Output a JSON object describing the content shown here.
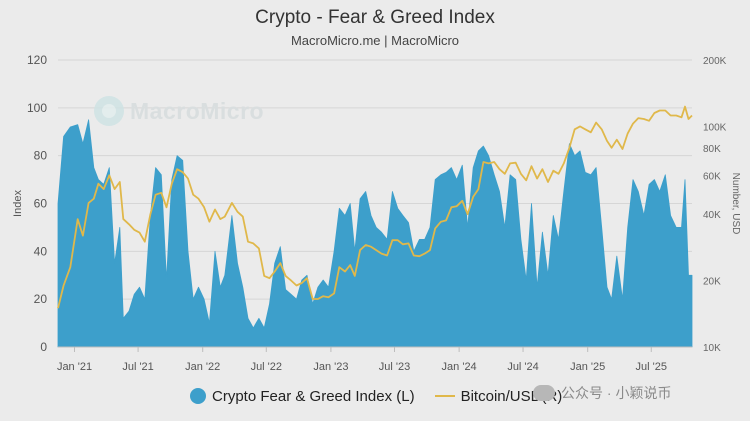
{
  "chart": {
    "title": "Crypto - Fear & Greed Index",
    "subtitle": "MacroMicro.me | MacroMicro",
    "watermark": "MacroMicro",
    "footer_watermark": "公众号 · 小颖说币"
  },
  "chart_data": {
    "type": "area",
    "title": "Crypto - Fear & Greed Index",
    "subtitle": "MacroMicro.me | MacroMicro",
    "grid": true,
    "legend_position": "bottom",
    "x_axis": {
      "type": "date",
      "range": [
        "2020-11-15",
        "2025-10-25"
      ],
      "ticks": [
        {
          "date": "2021-01-01",
          "label": "Jan '21"
        },
        {
          "date": "2021-07-01",
          "label": "Jul '21"
        },
        {
          "date": "2022-01-01",
          "label": "Jan '22"
        },
        {
          "date": "2022-07-01",
          "label": "Jul '22"
        },
        {
          "date": "2023-01-01",
          "label": "Jan '23"
        },
        {
          "date": "2023-07-01",
          "label": "Jul '23"
        },
        {
          "date": "2024-01-01",
          "label": "Jan '24"
        },
        {
          "date": "2024-07-01",
          "label": "Jul '24"
        },
        {
          "date": "2025-01-01",
          "label": "Jan '25"
        },
        {
          "date": "2025-07-01",
          "label": "Jul '25"
        }
      ]
    },
    "y_left": {
      "label": "Index",
      "range": [
        0,
        120
      ],
      "ticks": [
        0,
        20,
        40,
        60,
        80,
        100,
        120
      ]
    },
    "y_right": {
      "label": "Number, USD",
      "scale": "log",
      "range": [
        10000,
        200000
      ],
      "ticks": [
        {
          "value": 10000,
          "label": "10K"
        },
        {
          "value": 20000,
          "label": "20K"
        },
        {
          "value": 40000,
          "label": "40K"
        },
        {
          "value": 60000,
          "label": "60K"
        },
        {
          "value": 80000,
          "label": "80K"
        },
        {
          "value": 100000,
          "label": "100K"
        },
        {
          "value": 200000,
          "label": "200K"
        }
      ]
    },
    "series": [
      {
        "name": "Crypto Fear & Greed Index (L)",
        "axis": "left",
        "type": "area",
        "color": "#3d9fcb",
        "points": [
          [
            "2020-11-15",
            60
          ],
          [
            "2020-12-01",
            88
          ],
          [
            "2020-12-20",
            92
          ],
          [
            "2021-01-10",
            93
          ],
          [
            "2021-01-25",
            85
          ],
          [
            "2021-02-10",
            95
          ],
          [
            "2021-02-25",
            75
          ],
          [
            "2021-03-10",
            70
          ],
          [
            "2021-03-25",
            68
          ],
          [
            "2021-04-10",
            75
          ],
          [
            "2021-04-25",
            35
          ],
          [
            "2021-05-10",
            50
          ],
          [
            "2021-05-20",
            12
          ],
          [
            "2021-06-05",
            15
          ],
          [
            "2021-06-20",
            22
          ],
          [
            "2021-07-05",
            25
          ],
          [
            "2021-07-20",
            20
          ],
          [
            "2021-08-05",
            55
          ],
          [
            "2021-08-20",
            75
          ],
          [
            "2021-09-05",
            72
          ],
          [
            "2021-09-20",
            28
          ],
          [
            "2021-10-05",
            70
          ],
          [
            "2021-10-20",
            80
          ],
          [
            "2021-11-05",
            78
          ],
          [
            "2021-11-20",
            40
          ],
          [
            "2021-12-05",
            20
          ],
          [
            "2021-12-20",
            25
          ],
          [
            "2022-01-05",
            20
          ],
          [
            "2022-01-20",
            10
          ],
          [
            "2022-02-05",
            40
          ],
          [
            "2022-02-20",
            25
          ],
          [
            "2022-03-05",
            30
          ],
          [
            "2022-03-25",
            55
          ],
          [
            "2022-04-10",
            35
          ],
          [
            "2022-04-25",
            25
          ],
          [
            "2022-05-10",
            12
          ],
          [
            "2022-05-25",
            8
          ],
          [
            "2022-06-10",
            12
          ],
          [
            "2022-06-25",
            8
          ],
          [
            "2022-07-10",
            18
          ],
          [
            "2022-07-25",
            35
          ],
          [
            "2022-08-10",
            42
          ],
          [
            "2022-08-25",
            24
          ],
          [
            "2022-09-10",
            22
          ],
          [
            "2022-09-25",
            20
          ],
          [
            "2022-10-10",
            28
          ],
          [
            "2022-10-25",
            30
          ],
          [
            "2022-11-10",
            18
          ],
          [
            "2022-11-25",
            25
          ],
          [
            "2022-12-10",
            28
          ],
          [
            "2022-12-25",
            25
          ],
          [
            "2023-01-10",
            40
          ],
          [
            "2023-01-25",
            58
          ],
          [
            "2023-02-10",
            55
          ],
          [
            "2023-02-25",
            60
          ],
          [
            "2023-03-10",
            40
          ],
          [
            "2023-03-25",
            62
          ],
          [
            "2023-04-10",
            65
          ],
          [
            "2023-04-25",
            55
          ],
          [
            "2023-05-10",
            50
          ],
          [
            "2023-05-25",
            48
          ],
          [
            "2023-06-10",
            45
          ],
          [
            "2023-06-25",
            65
          ],
          [
            "2023-07-10",
            58
          ],
          [
            "2023-07-25",
            55
          ],
          [
            "2023-08-10",
            52
          ],
          [
            "2023-08-25",
            40
          ],
          [
            "2023-09-10",
            45
          ],
          [
            "2023-09-25",
            45
          ],
          [
            "2023-10-10",
            50
          ],
          [
            "2023-10-25",
            70
          ],
          [
            "2023-11-10",
            72
          ],
          [
            "2023-11-25",
            73
          ],
          [
            "2023-12-10",
            75
          ],
          [
            "2023-12-25",
            70
          ],
          [
            "2024-01-10",
            76
          ],
          [
            "2024-01-25",
            50
          ],
          [
            "2024-02-10",
            75
          ],
          [
            "2024-02-25",
            82
          ],
          [
            "2024-03-10",
            84
          ],
          [
            "2024-03-25",
            80
          ],
          [
            "2024-04-10",
            72
          ],
          [
            "2024-04-25",
            65
          ],
          [
            "2024-05-10",
            50
          ],
          [
            "2024-05-25",
            72
          ],
          [
            "2024-06-10",
            70
          ],
          [
            "2024-06-25",
            45
          ],
          [
            "2024-07-10",
            28
          ],
          [
            "2024-07-25",
            60
          ],
          [
            "2024-08-10",
            25
          ],
          [
            "2024-08-25",
            48
          ],
          [
            "2024-09-10",
            30
          ],
          [
            "2024-09-25",
            55
          ],
          [
            "2024-10-10",
            45
          ],
          [
            "2024-10-25",
            65
          ],
          [
            "2024-11-10",
            85
          ],
          [
            "2024-11-25",
            80
          ],
          [
            "2024-12-10",
            82
          ],
          [
            "2024-12-25",
            73
          ],
          [
            "2025-01-10",
            72
          ],
          [
            "2025-01-25",
            75
          ],
          [
            "2025-02-10",
            50
          ],
          [
            "2025-02-25",
            25
          ],
          [
            "2025-03-10",
            20
          ],
          [
            "2025-03-25",
            38
          ],
          [
            "2025-04-10",
            20
          ],
          [
            "2025-04-25",
            50
          ],
          [
            "2025-05-10",
            70
          ],
          [
            "2025-05-25",
            65
          ],
          [
            "2025-06-10",
            55
          ],
          [
            "2025-06-25",
            68
          ],
          [
            "2025-07-10",
            70
          ],
          [
            "2025-07-25",
            65
          ],
          [
            "2025-08-10",
            72
          ],
          [
            "2025-08-25",
            55
          ],
          [
            "2025-09-10",
            50
          ],
          [
            "2025-09-25",
            50
          ],
          [
            "2025-10-05",
            70
          ],
          [
            "2025-10-15",
            30
          ],
          [
            "2025-10-25",
            30
          ]
        ]
      },
      {
        "name": "Bitcoin/USD(R)",
        "axis": "right",
        "type": "line",
        "color": "#e0b84a",
        "points": [
          [
            "2020-11-15",
            15000
          ],
          [
            "2020-12-01",
            19000
          ],
          [
            "2020-12-20",
            23000
          ],
          [
            "2021-01-10",
            38000
          ],
          [
            "2021-01-25",
            32000
          ],
          [
            "2021-02-10",
            45000
          ],
          [
            "2021-02-25",
            47000
          ],
          [
            "2021-03-10",
            55000
          ],
          [
            "2021-03-25",
            52000
          ],
          [
            "2021-04-10",
            60000
          ],
          [
            "2021-04-25",
            52000
          ],
          [
            "2021-05-10",
            56000
          ],
          [
            "2021-05-20",
            38000
          ],
          [
            "2021-06-05",
            36000
          ],
          [
            "2021-06-20",
            34000
          ],
          [
            "2021-07-05",
            33000
          ],
          [
            "2021-07-20",
            30000
          ],
          [
            "2021-08-05",
            40000
          ],
          [
            "2021-08-20",
            49000
          ],
          [
            "2021-09-05",
            50000
          ],
          [
            "2021-09-20",
            43000
          ],
          [
            "2021-10-05",
            55000
          ],
          [
            "2021-10-20",
            64000
          ],
          [
            "2021-11-05",
            62000
          ],
          [
            "2021-11-20",
            58000
          ],
          [
            "2021-12-05",
            49000
          ],
          [
            "2021-12-20",
            47000
          ],
          [
            "2022-01-05",
            43000
          ],
          [
            "2022-01-20",
            37000
          ],
          [
            "2022-02-05",
            42000
          ],
          [
            "2022-02-20",
            38000
          ],
          [
            "2022-03-05",
            39000
          ],
          [
            "2022-03-25",
            45000
          ],
          [
            "2022-04-10",
            41000
          ],
          [
            "2022-04-25",
            39000
          ],
          [
            "2022-05-10",
            30000
          ],
          [
            "2022-05-25",
            29500
          ],
          [
            "2022-06-10",
            28000
          ],
          [
            "2022-06-25",
            21000
          ],
          [
            "2022-07-10",
            20500
          ],
          [
            "2022-07-25",
            22000
          ],
          [
            "2022-08-10",
            24000
          ],
          [
            "2022-08-25",
            21000
          ],
          [
            "2022-09-10",
            20000
          ],
          [
            "2022-09-25",
            19000
          ],
          [
            "2022-10-10",
            19500
          ],
          [
            "2022-10-25",
            20500
          ],
          [
            "2022-11-10",
            16500
          ],
          [
            "2022-11-25",
            16500
          ],
          [
            "2022-12-10",
            17000
          ],
          [
            "2022-12-25",
            16800
          ],
          [
            "2023-01-10",
            17500
          ],
          [
            "2023-01-25",
            23000
          ],
          [
            "2023-02-10",
            22000
          ],
          [
            "2023-02-25",
            23500
          ],
          [
            "2023-03-10",
            21000
          ],
          [
            "2023-03-25",
            27500
          ],
          [
            "2023-04-10",
            29000
          ],
          [
            "2023-04-25",
            28500
          ],
          [
            "2023-05-10",
            27500
          ],
          [
            "2023-05-25",
            26500
          ],
          [
            "2023-06-10",
            26000
          ],
          [
            "2023-06-25",
            30500
          ],
          [
            "2023-07-10",
            30500
          ],
          [
            "2023-07-25",
            29200
          ],
          [
            "2023-08-10",
            29500
          ],
          [
            "2023-08-25",
            26000
          ],
          [
            "2023-09-10",
            25800
          ],
          [
            "2023-09-25",
            26500
          ],
          [
            "2023-10-10",
            27500
          ],
          [
            "2023-10-25",
            34500
          ],
          [
            "2023-11-10",
            37000
          ],
          [
            "2023-11-25",
            37500
          ],
          [
            "2023-12-10",
            43000
          ],
          [
            "2023-12-25",
            43500
          ],
          [
            "2024-01-10",
            46000
          ],
          [
            "2024-01-25",
            40000
          ],
          [
            "2024-02-10",
            48000
          ],
          [
            "2024-02-25",
            52000
          ],
          [
            "2024-03-10",
            69000
          ],
          [
            "2024-03-25",
            68000
          ],
          [
            "2024-04-10",
            69000
          ],
          [
            "2024-04-25",
            64000
          ],
          [
            "2024-05-10",
            61000
          ],
          [
            "2024-05-25",
            68000
          ],
          [
            "2024-06-10",
            68500
          ],
          [
            "2024-06-25",
            61000
          ],
          [
            "2024-07-10",
            57000
          ],
          [
            "2024-07-25",
            66000
          ],
          [
            "2024-08-10",
            58000
          ],
          [
            "2024-08-25",
            64000
          ],
          [
            "2024-09-10",
            56000
          ],
          [
            "2024-09-25",
            63000
          ],
          [
            "2024-10-10",
            61000
          ],
          [
            "2024-10-25",
            68000
          ],
          [
            "2024-11-10",
            80000
          ],
          [
            "2024-11-25",
            97000
          ],
          [
            "2024-12-10",
            100000
          ],
          [
            "2024-12-25",
            97000
          ],
          [
            "2025-01-10",
            94000
          ],
          [
            "2025-01-25",
            104000
          ],
          [
            "2025-02-10",
            97000
          ],
          [
            "2025-02-25",
            86000
          ],
          [
            "2025-03-10",
            80000
          ],
          [
            "2025-03-25",
            87000
          ],
          [
            "2025-04-10",
            79000
          ],
          [
            "2025-04-25",
            93000
          ],
          [
            "2025-05-10",
            103000
          ],
          [
            "2025-05-25",
            109000
          ],
          [
            "2025-06-10",
            108000
          ],
          [
            "2025-06-25",
            106000
          ],
          [
            "2025-07-10",
            115000
          ],
          [
            "2025-07-25",
            118000
          ],
          [
            "2025-08-10",
            118000
          ],
          [
            "2025-08-25",
            112000
          ],
          [
            "2025-09-10",
            112000
          ],
          [
            "2025-09-25",
            110000
          ],
          [
            "2025-10-05",
            123000
          ],
          [
            "2025-10-15",
            108000
          ],
          [
            "2025-10-25",
            112000
          ]
        ]
      }
    ]
  }
}
